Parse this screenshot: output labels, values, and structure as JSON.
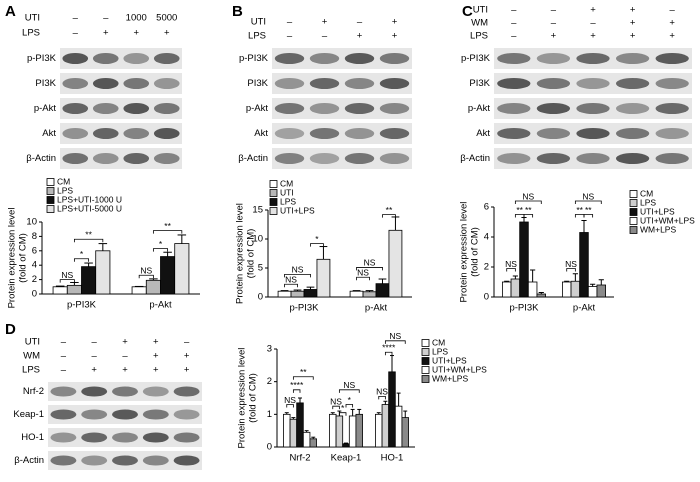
{
  "panels": [
    {
      "letter": "A",
      "treatments": [
        {
          "name": "UTI",
          "lanes": [
            "–",
            "–",
            "1000",
            "5000"
          ]
        },
        {
          "name": "LPS",
          "lanes": [
            "–",
            "+",
            "+",
            "+"
          ]
        }
      ],
      "proteins": [
        "p-PI3K",
        "PI3K",
        "p-Akt",
        "Akt",
        "β-Actin"
      ]
    },
    {
      "letter": "B",
      "treatments": [
        {
          "name": "UTI",
          "lanes": [
            "–",
            "+",
            "–",
            "+"
          ]
        },
        {
          "name": "LPS",
          "lanes": [
            "–",
            "–",
            "+",
            "+"
          ]
        }
      ],
      "proteins": [
        "p-PI3K",
        "PI3K",
        "p-Akt",
        "Akt",
        "β-Actin"
      ]
    },
    {
      "letter": "C",
      "treatments": [
        {
          "name": "UTI",
          "lanes": [
            "–",
            "–",
            "+",
            "+",
            "–"
          ]
        },
        {
          "name": "WM",
          "lanes": [
            "–",
            "–",
            "–",
            "+",
            "+"
          ]
        },
        {
          "name": "LPS",
          "lanes": [
            "–",
            "+",
            "+",
            "+",
            "+"
          ]
        }
      ],
      "proteins": [
        "p-PI3K",
        "PI3K",
        "p-Akt",
        "Akt",
        "β-Actin"
      ]
    },
    {
      "letter": "D",
      "treatments": [
        {
          "name": "UTI",
          "lanes": [
            "–",
            "–",
            "+",
            "+",
            "–"
          ]
        },
        {
          "name": "WM",
          "lanes": [
            "–",
            "–",
            "–",
            "+",
            "+"
          ]
        },
        {
          "name": "LPS",
          "lanes": [
            "–",
            "+",
            "+",
            "+",
            "+"
          ]
        }
      ],
      "proteins": [
        "Nrf-2",
        "Keap-1",
        "HO-1",
        "β-Actin"
      ]
    }
  ],
  "chart_data": [
    {
      "type": "bar",
      "y_label": [
        "Protein expression level",
        "(fold of CM)"
      ],
      "categories": [
        "p-PI3K",
        "p-Akt"
      ],
      "ylim": [
        0,
        10
      ],
      "yticks": [
        0,
        2,
        4,
        6,
        8,
        10
      ],
      "series": [
        {
          "name": "CM",
          "color": "#ffffff",
          "values": [
            1,
            1
          ],
          "errors": [
            0.1,
            0.05
          ]
        },
        {
          "name": "LPS",
          "color": "#b8b8b8",
          "values": [
            1.2,
            1.9
          ],
          "errors": [
            0.4,
            0.2
          ]
        },
        {
          "name": "LPS+UTI-1000 U",
          "color": "#111111",
          "values": [
            3.8,
            5.2
          ],
          "errors": [
            0.5,
            0.6
          ]
        },
        {
          "name": "LPS+UTI-5000 U",
          "color": "#e4e4e4",
          "values": [
            6,
            7
          ],
          "errors": [
            1,
            1.2
          ]
        }
      ],
      "annotations": [
        "NS",
        "*",
        "**",
        "NS",
        "*",
        "**"
      ]
    },
    {
      "type": "bar",
      "y_label": [
        "Protein expression level",
        "(fold of CM)"
      ],
      "categories": [
        "p-PI3K",
        "p-Akt"
      ],
      "ylim": [
        0,
        15
      ],
      "yticks": [
        0,
        5,
        10,
        15
      ],
      "series": [
        {
          "name": "CM",
          "color": "#ffffff",
          "values": [
            1,
            1
          ],
          "errors": [
            0.1,
            0.1
          ]
        },
        {
          "name": "UTI",
          "color": "#b8b8b8",
          "values": [
            1,
            0.9
          ],
          "errors": [
            0.2,
            0.2
          ]
        },
        {
          "name": "LPS",
          "color": "#111111",
          "values": [
            1.3,
            2.3
          ],
          "errors": [
            0.4,
            0.8
          ]
        },
        {
          "name": "UTI+LPS",
          "color": "#e4e4e4",
          "values": [
            6.5,
            11.5
          ],
          "errors": [
            2.2,
            2.3
          ]
        }
      ],
      "annotations": [
        "NS",
        "NS",
        "*",
        "NS",
        "NS",
        "**"
      ]
    },
    {
      "type": "bar",
      "y_label": [
        "Protein expression level",
        "(fold of CM)"
      ],
      "categories": [
        "p-PI3K",
        "p-Akt"
      ],
      "ylim": [
        0,
        6
      ],
      "yticks": [
        0,
        2,
        4,
        6
      ],
      "series": [
        {
          "name": "CM",
          "color": "#ffffff",
          "values": [
            1,
            1
          ],
          "errors": [
            0.05,
            0.05
          ]
        },
        {
          "name": "LPS",
          "color": "#cfcfcf",
          "values": [
            1.2,
            1.05
          ],
          "errors": [
            0.2,
            0.5
          ]
        },
        {
          "name": "UTI+LPS",
          "color": "#111111",
          "values": [
            5,
            4.3
          ],
          "errors": [
            0.3,
            0.8
          ]
        },
        {
          "name": "UTI+WM+LPS",
          "color": "#ffffff",
          "values": [
            1,
            0.7
          ],
          "errors": [
            0.8,
            0.15
          ]
        },
        {
          "name": "WM+LPS",
          "color": "#8a8a8a",
          "values": [
            0.2,
            0.8
          ],
          "errors": [
            0.1,
            0.35
          ]
        }
      ],
      "annotations": [
        "NS",
        "**",
        "**",
        "NS",
        "NS",
        "**",
        "**",
        "NS"
      ]
    },
    {
      "type": "bar",
      "y_label": [
        "Protein expression level",
        "(fold of CM)"
      ],
      "categories": [
        "Nrf-2",
        "Keap-1",
        "HO-1"
      ],
      "ylim": [
        0,
        3
      ],
      "yticks": [
        0,
        1,
        2,
        3
      ],
      "series": [
        {
          "name": "CM",
          "color": "#ffffff",
          "values": [
            1,
            1,
            1
          ],
          "errors": [
            0.05,
            0.05,
            0.05
          ]
        },
        {
          "name": "LPS",
          "color": "#cfcfcf",
          "values": [
            0.85,
            0.95,
            1.3
          ],
          "errors": [
            0.05,
            0.15,
            0.1
          ]
        },
        {
          "name": "UTI+LPS",
          "color": "#111111",
          "values": [
            1.35,
            0.1,
            2.3
          ],
          "errors": [
            0.15,
            0.02,
            0.5
          ]
        },
        {
          "name": "UTI+WM+LPS",
          "color": "#ffffff",
          "values": [
            0.45,
            0.95,
            1.25
          ],
          "errors": [
            0.05,
            0.2,
            0.4
          ]
        },
        {
          "name": "WM+LPS",
          "color": "#8a8a8a",
          "values": [
            0.25,
            1,
            0.9
          ],
          "errors": [
            0.05,
            0.15,
            0.2
          ]
        }
      ],
      "annotations": [
        "NS",
        "****",
        "**",
        "NS",
        "*",
        "*",
        "NS",
        "NS",
        "****",
        "NS"
      ]
    }
  ]
}
